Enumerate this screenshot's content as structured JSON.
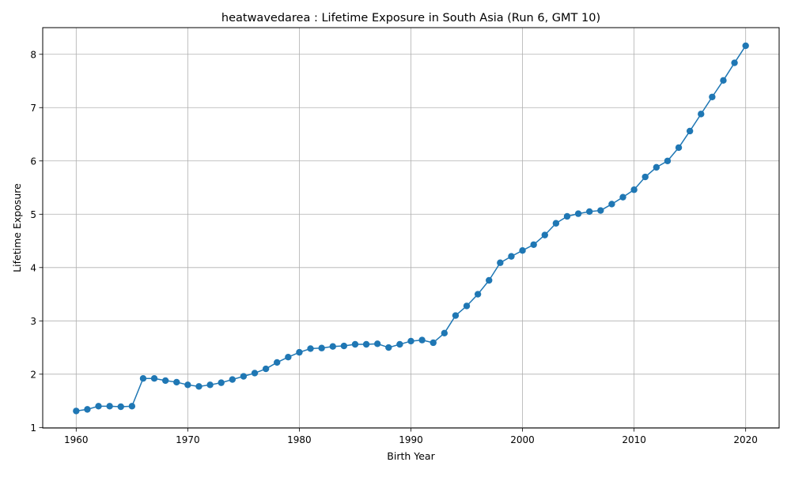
{
  "chart_data": {
    "type": "line",
    "title": "heatwavedarea : Lifetime Exposure in South Asia (Run 6, GMT 10)",
    "xlabel": "Birth Year",
    "ylabel": "Lifetime Exposure",
    "xlim": [
      1957,
      2023
    ],
    "ylim": [
      0.99,
      8.5
    ],
    "x_ticks": [
      1960,
      1970,
      1980,
      1990,
      2000,
      2010,
      2020
    ],
    "y_ticks": [
      1,
      2,
      3,
      4,
      5,
      6,
      7,
      8
    ],
    "grid": true,
    "line_color": "#1f77b4",
    "marker": "circle",
    "series": [
      {
        "x": [
          1960,
          1961,
          1962,
          1963,
          1964,
          1965,
          1966,
          1967,
          1968,
          1969,
          1970,
          1971,
          1972,
          1973,
          1974,
          1975,
          1976,
          1977,
          1978,
          1979,
          1980,
          1981,
          1982,
          1983,
          1984,
          1985,
          1986,
          1987,
          1988,
          1989,
          1990,
          1991,
          1992,
          1993,
          1994,
          1995,
          1996,
          1997,
          1998,
          1999,
          2000,
          2001,
          2002,
          2003,
          2004,
          2005,
          2006,
          2007,
          2008,
          2009,
          2010,
          2011,
          2012,
          2013,
          2014,
          2015,
          2016,
          2017,
          2018,
          2019,
          2020
        ],
        "values": [
          1.31,
          1.34,
          1.4,
          1.4,
          1.39,
          1.4,
          1.92,
          1.92,
          1.88,
          1.85,
          1.8,
          1.77,
          1.8,
          1.84,
          1.9,
          1.96,
          2.02,
          2.1,
          2.22,
          2.32,
          2.41,
          2.48,
          2.49,
          2.52,
          2.53,
          2.56,
          2.56,
          2.57,
          2.5,
          2.56,
          2.62,
          2.64,
          2.59,
          2.77,
          3.1,
          3.28,
          3.5,
          3.76,
          4.09,
          4.21,
          4.32,
          4.43,
          4.61,
          4.83,
          4.96,
          5.01,
          5.05,
          5.07,
          5.19,
          5.32,
          5.46,
          5.7,
          5.88,
          6.0,
          6.25,
          6.56,
          6.88,
          7.2,
          7.51,
          7.84,
          8.16
        ]
      }
    ]
  }
}
